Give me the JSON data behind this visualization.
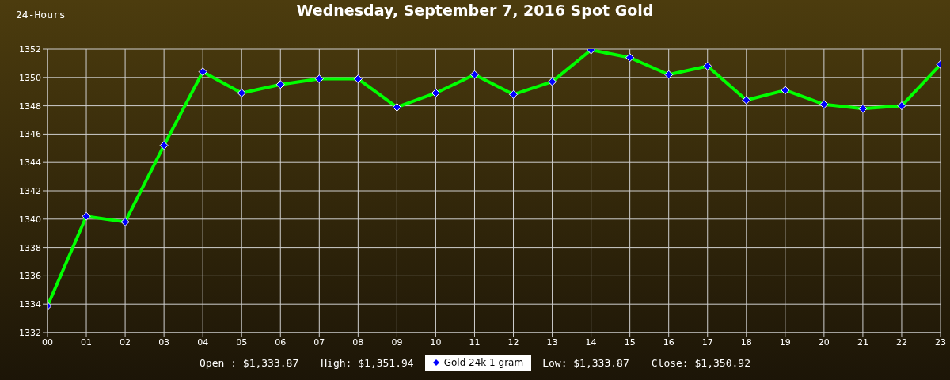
{
  "chart_data": {
    "type": "line",
    "title": "Wednesday, September 7, 2016 Spot Gold",
    "subtitle": "24-Hours",
    "categories": [
      "00",
      "01",
      "02",
      "03",
      "04",
      "05",
      "06",
      "07",
      "08",
      "09",
      "10",
      "11",
      "12",
      "13",
      "14",
      "15",
      "16",
      "17",
      "18",
      "19",
      "20",
      "21",
      "22",
      "23"
    ],
    "series": [
      {
        "name": "Gold 24k 1 gram",
        "color": "#00ff00",
        "values": [
          1333.87,
          1340.2,
          1339.8,
          1345.2,
          1350.4,
          1348.9,
          1349.5,
          1349.9,
          1349.9,
          1347.9,
          1348.9,
          1350.2,
          1348.8,
          1349.7,
          1351.94,
          1351.4,
          1350.2,
          1350.8,
          1348.4,
          1349.1,
          1348.1,
          1347.8,
          1348.0,
          1350.92
        ]
      }
    ],
    "ylim": [
      1332,
      1352
    ],
    "yticks": [
      1332,
      1334,
      1336,
      1338,
      1340,
      1342,
      1344,
      1346,
      1348,
      1350,
      1352
    ],
    "grid": true,
    "legend": "bottom",
    "marker": "diamond",
    "line_style": "solid",
    "annotations": [
      "Open : $1,333.87",
      "High: $1,351.94",
      "Low: $1,333.87",
      "Close: $1,350.92"
    ]
  }
}
